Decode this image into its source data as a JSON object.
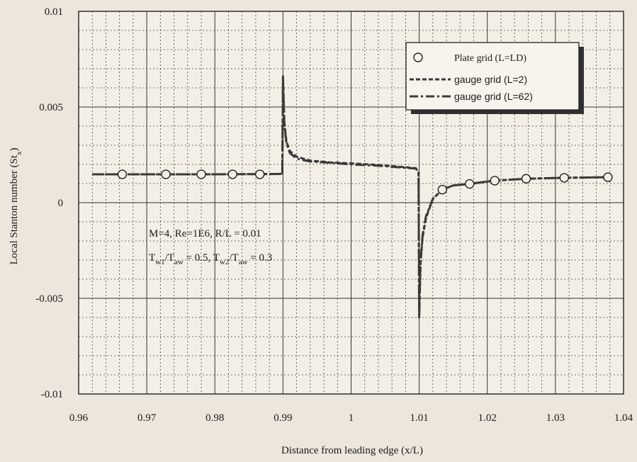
{
  "chart_data": {
    "type": "line",
    "xlabel": "Distance from leading edge (x/L)",
    "ylabel": "Local Stanton number (St",
    "ylabel_sub": "x",
    "ylabel_close": ")",
    "xlim": [
      0.96,
      1.04
    ],
    "ylim": [
      -0.01,
      0.01
    ],
    "x_ticks": [
      0.96,
      0.97,
      0.98,
      0.99,
      1,
      1.01,
      1.02,
      1.03,
      1.04
    ],
    "x_tick_labels": [
      "0.96",
      "0.97",
      "0.98",
      "0.99",
      "1",
      "1.01",
      "1.02",
      "1.03",
      "1.04"
    ],
    "y_ticks": [
      -0.01,
      -0.005,
      0,
      0.005,
      0.01
    ],
    "y_tick_labels": [
      "-0.01",
      "-0.005",
      "0",
      "0.005",
      "0.01"
    ],
    "grid": "major and minor",
    "legend_position": "top-right",
    "series": [
      {
        "name": "Plate grid (L=LD)",
        "style": "circles",
        "color": "#222222",
        "points": [
          [
            0.9664,
            0.00148
          ],
          [
            0.9728,
            0.00148
          ],
          [
            0.978,
            0.00148
          ],
          [
            0.9826,
            0.00148
          ],
          [
            0.9866,
            0.00148
          ],
          [
            1.0134,
            0.00068
          ],
          [
            1.0174,
            0.00098
          ],
          [
            1.0211,
            0.00115
          ],
          [
            1.0257,
            0.00125
          ],
          [
            1.0313,
            0.0013
          ],
          [
            1.0377,
            0.00133
          ]
        ]
      },
      {
        "name": "gauge grid (L=2)",
        "style": "dashed",
        "color": "#3a3a3a",
        "points": [
          [
            0.962,
            0.00148
          ],
          [
            0.97,
            0.00148
          ],
          [
            0.98,
            0.00148
          ],
          [
            0.9899,
            0.0015
          ],
          [
            0.99,
            0.0066
          ],
          [
            0.9902,
            0.0042
          ],
          [
            0.9905,
            0.0032
          ],
          [
            0.991,
            0.0027
          ],
          [
            0.992,
            0.0024
          ],
          [
            0.994,
            0.0022
          ],
          [
            0.997,
            0.0021
          ],
          [
            1.0,
            0.00205
          ],
          [
            1.004,
            0.00197
          ],
          [
            1.007,
            0.00188
          ],
          [
            1.0095,
            0.0018
          ],
          [
            1.0099,
            0.0016
          ],
          [
            1.01,
            -0.006
          ],
          [
            1.0102,
            -0.0032
          ],
          [
            1.0105,
            -0.0018
          ],
          [
            1.011,
            -0.0008
          ],
          [
            1.012,
            0.0002
          ],
          [
            1.0134,
            0.00068
          ],
          [
            1.015,
            0.0009
          ],
          [
            1.0174,
            0.00098
          ],
          [
            1.021,
            0.00115
          ],
          [
            1.0257,
            0.00125
          ],
          [
            1.0313,
            0.0013
          ],
          [
            1.0377,
            0.00133
          ]
        ]
      },
      {
        "name": "gauge grid (L=62)",
        "style": "dash-dot",
        "color": "#3a3a3a",
        "points": [
          [
            0.962,
            0.00148
          ],
          [
            0.97,
            0.00148
          ],
          [
            0.98,
            0.00148
          ],
          [
            0.9899,
            0.0015
          ],
          [
            0.99,
            0.0064
          ],
          [
            0.9902,
            0.0041
          ],
          [
            0.9905,
            0.0031
          ],
          [
            0.991,
            0.0026
          ],
          [
            0.992,
            0.0023
          ],
          [
            0.994,
            0.00215
          ],
          [
            0.997,
            0.00208
          ],
          [
            1.0,
            0.002
          ],
          [
            1.004,
            0.00193
          ],
          [
            1.007,
            0.00185
          ],
          [
            1.0095,
            0.00178
          ],
          [
            1.0099,
            0.0016
          ],
          [
            1.01,
            -0.0059
          ],
          [
            1.0102,
            -0.0031
          ],
          [
            1.0105,
            -0.0017
          ],
          [
            1.011,
            -0.0007
          ],
          [
            1.012,
            0.0002
          ],
          [
            1.0134,
            0.00068
          ],
          [
            1.015,
            0.0009
          ],
          [
            1.0174,
            0.00098
          ],
          [
            1.021,
            0.00115
          ],
          [
            1.0257,
            0.00125
          ],
          [
            1.0313,
            0.0013
          ],
          [
            1.0377,
            0.00133
          ]
        ]
      }
    ],
    "annotation": {
      "line1": "M=4, Re=1E6, R/L = 0.01",
      "line2_parts": [
        {
          "text": "T",
          "sub": false
        },
        {
          "text": "w1",
          "sub": true
        },
        {
          "text": "/T",
          "sub": false
        },
        {
          "text": "aw",
          "sub": true
        },
        {
          "text": " = 0.5, T",
          "sub": false
        },
        {
          "text": "w2",
          "sub": true
        },
        {
          "text": "/T",
          "sub": false
        },
        {
          "text": "aw",
          "sub": true
        },
        {
          "text": " = 0.3",
          "sub": false
        }
      ]
    }
  }
}
